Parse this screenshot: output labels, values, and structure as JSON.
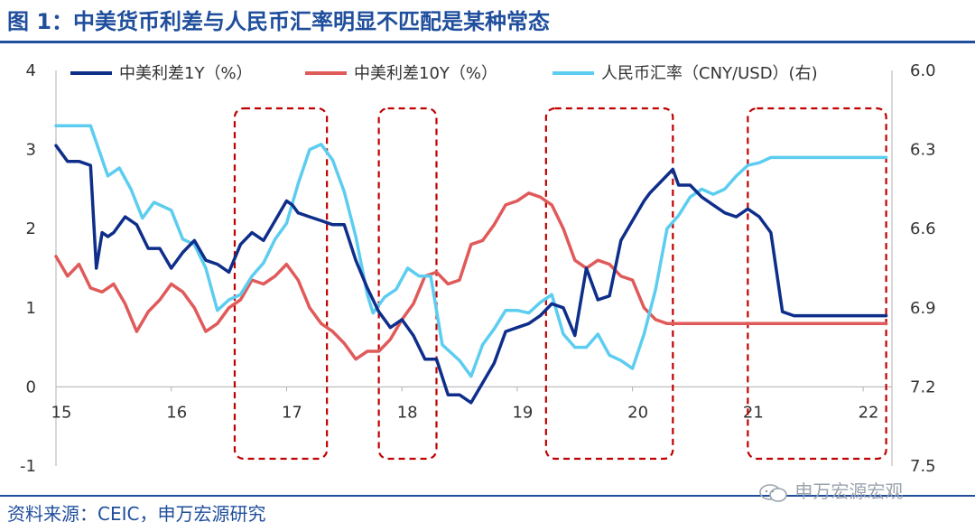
{
  "header": {
    "title": "图 1：中美货币利差与人民币汇率明显不匹配是某种常态"
  },
  "footer": {
    "source": "资料来源：CEIC，申万宏源研究",
    "watermark": "申万宏源宏观"
  },
  "chart_data": {
    "type": "line",
    "title": "图 1：中美货币利差与人民币汇率明显不匹配是某种常态",
    "x_ticks": [
      "15",
      "16",
      "17",
      "18",
      "19",
      "20",
      "21",
      "22"
    ],
    "y_left": {
      "ylim": [
        -1,
        4
      ],
      "ticks": [
        "4",
        "3",
        "2",
        "1",
        "0",
        "-1"
      ]
    },
    "y_right": {
      "ylim": [
        6.0,
        7.5
      ],
      "inverted": true,
      "ticks": [
        "6.0",
        "6.3",
        "6.6",
        "6.9",
        "7.2",
        "7.5"
      ]
    },
    "legend_position": "top",
    "colors": {
      "series1": "#0e2e8a",
      "series2": "#e05a5a",
      "series3": "#5ccdf0",
      "highlight": "#c00000"
    },
    "series": [
      {
        "name": "中美利差1Y（%）",
        "axis": "left",
        "x": [
          2015.0,
          2015.1,
          2015.2,
          2015.3,
          2015.35,
          2015.4,
          2015.45,
          2015.5,
          2015.6,
          2015.7,
          2015.8,
          2015.9,
          2016.0,
          2016.1,
          2016.2,
          2016.3,
          2016.4,
          2016.5,
          2016.6,
          2016.7,
          2016.8,
          2016.9,
          2017.0,
          2017.05,
          2017.1,
          2017.2,
          2017.3,
          2017.4,
          2017.5,
          2017.6,
          2017.7,
          2017.8,
          2017.9,
          2018.0,
          2018.1,
          2018.2,
          2018.3,
          2018.4,
          2018.5,
          2018.6,
          2018.7,
          2018.8,
          2018.9,
          2019.0,
          2019.1,
          2019.2,
          2019.3,
          2019.4,
          2019.5,
          2019.6,
          2019.7,
          2019.8,
          2019.9,
          2020.0,
          2020.1,
          2020.15,
          2020.25,
          2020.35,
          2020.4,
          2020.5,
          2020.6,
          2020.7,
          2020.8,
          2020.9,
          2021.0,
          2021.1,
          2021.2,
          2021.3,
          2021.4,
          2021.5,
          2021.6,
          2021.7,
          2021.8,
          2021.9,
          2022.0,
          2022.1,
          2022.2
        ],
        "values": [
          3.05,
          2.85,
          2.85,
          2.8,
          1.5,
          1.95,
          1.9,
          1.95,
          2.15,
          2.05,
          1.75,
          1.75,
          1.5,
          1.7,
          1.85,
          1.6,
          1.55,
          1.45,
          1.8,
          1.95,
          1.85,
          2.1,
          2.35,
          2.3,
          2.2,
          2.15,
          2.1,
          2.05,
          2.05,
          1.6,
          1.25,
          0.95,
          0.75,
          0.85,
          0.65,
          0.35,
          0.35,
          -0.1,
          -0.1,
          -0.2,
          0.05,
          0.3,
          0.7,
          0.75,
          0.8,
          0.9,
          1.05,
          1.0,
          0.65,
          1.5,
          1.1,
          1.15,
          1.85,
          2.1,
          2.35,
          2.45,
          2.6,
          2.75,
          2.55,
          2.55,
          2.4,
          2.3,
          2.2,
          2.15,
          2.25,
          2.15,
          1.95,
          0.95,
          0.9,
          0.9,
          0.9,
          0.9,
          0.9,
          0.9,
          0.9,
          0.9,
          0.9
        ]
      },
      {
        "name": "中美利差10Y（%）",
        "axis": "left",
        "x": [
          2015.0,
          2015.1,
          2015.2,
          2015.3,
          2015.4,
          2015.5,
          2015.6,
          2015.7,
          2015.8,
          2015.9,
          2016.0,
          2016.1,
          2016.2,
          2016.3,
          2016.4,
          2016.5,
          2016.6,
          2016.7,
          2016.8,
          2016.9,
          2017.0,
          2017.1,
          2017.2,
          2017.3,
          2017.4,
          2017.5,
          2017.6,
          2017.7,
          2017.8,
          2017.9,
          2018.0,
          2018.1,
          2018.2,
          2018.3,
          2018.4,
          2018.5,
          2018.6,
          2018.7,
          2018.8,
          2018.9,
          2019.0,
          2019.1,
          2019.2,
          2019.3,
          2019.4,
          2019.5,
          2019.6,
          2019.7,
          2019.8,
          2019.9,
          2020.0,
          2020.1,
          2020.2,
          2020.3,
          2020.4,
          2020.5,
          2020.6,
          2020.7,
          2020.8,
          2020.9,
          2021.0,
          2021.1,
          2021.2,
          2021.3,
          2021.4,
          2021.5,
          2021.6,
          2021.7,
          2021.8,
          2021.9,
          2022.0,
          2022.1,
          2022.2
        ],
        "values": [
          1.65,
          1.4,
          1.55,
          1.25,
          1.2,
          1.3,
          1.05,
          0.7,
          0.95,
          1.1,
          1.3,
          1.2,
          1.0,
          0.7,
          0.8,
          1.0,
          1.1,
          1.35,
          1.3,
          1.4,
          1.55,
          1.35,
          1.0,
          0.8,
          0.7,
          0.55,
          0.35,
          0.45,
          0.45,
          0.6,
          0.85,
          1.05,
          1.4,
          1.45,
          1.3,
          1.35,
          1.8,
          1.85,
          2.05,
          2.3,
          2.35,
          2.45,
          2.4,
          2.3,
          2.0,
          1.6,
          1.5,
          1.6,
          1.55,
          1.4,
          1.35,
          1.0,
          0.85,
          0.8,
          0.8,
          0.8,
          0.8,
          0.8,
          0.8,
          0.8,
          0.8,
          0.8,
          0.8,
          0.8,
          0.8,
          0.8,
          0.8,
          0.8,
          0.8,
          0.8,
          0.8,
          0.8,
          0.8
        ]
      },
      {
        "name": "人民币汇率（CNY/USD）(右)",
        "axis": "right",
        "x": [
          2015.0,
          2015.1,
          2015.2,
          2015.3,
          2015.45,
          2015.55,
          2015.65,
          2015.75,
          2015.85,
          2016.0,
          2016.1,
          2016.2,
          2016.3,
          2016.4,
          2016.5,
          2016.6,
          2016.7,
          2016.8,
          2016.9,
          2017.0,
          2017.1,
          2017.2,
          2017.3,
          2017.4,
          2017.5,
          2017.6,
          2017.7,
          2017.75,
          2017.85,
          2017.95,
          2018.05,
          2018.15,
          2018.25,
          2018.35,
          2018.5,
          2018.6,
          2018.7,
          2018.8,
          2018.9,
          2019.0,
          2019.1,
          2019.2,
          2019.3,
          2019.4,
          2019.5,
          2019.6,
          2019.7,
          2019.8,
          2019.9,
          2020.0,
          2020.1,
          2020.2,
          2020.3,
          2020.4,
          2020.5,
          2020.6,
          2020.7,
          2020.8,
          2020.9,
          2021.0,
          2021.1,
          2021.2,
          2021.3,
          2021.4,
          2021.5,
          2021.6,
          2021.7,
          2021.8,
          2021.9,
          2022.0,
          2022.1,
          2022.2
        ],
        "values": [
          6.21,
          6.21,
          6.21,
          6.21,
          6.4,
          6.37,
          6.45,
          6.56,
          6.5,
          6.53,
          6.64,
          6.66,
          6.75,
          6.91,
          6.87,
          6.85,
          6.78,
          6.73,
          6.64,
          6.58,
          6.43,
          6.3,
          6.28,
          6.34,
          6.46,
          6.63,
          6.85,
          6.92,
          6.86,
          6.83,
          6.75,
          6.78,
          6.78,
          7.04,
          7.1,
          7.16,
          7.04,
          6.98,
          6.91,
          6.91,
          6.92,
          6.88,
          6.85,
          7.0,
          7.05,
          7.05,
          7.0,
          7.08,
          7.1,
          7.13,
          7.0,
          6.83,
          6.6,
          6.55,
          6.48,
          6.45,
          6.47,
          6.45,
          6.4,
          6.36,
          6.35,
          6.33,
          6.33,
          6.33,
          6.33,
          6.33,
          6.33,
          6.33,
          6.33,
          6.33,
          6.33,
          6.33
        ]
      }
    ],
    "annotations": [
      {
        "type": "dashed-box",
        "x_range": [
          2016.55,
          2017.35
        ]
      },
      {
        "type": "dashed-box",
        "x_range": [
          2017.8,
          2018.3
        ]
      },
      {
        "type": "dashed-box",
        "x_range": [
          2019.25,
          2020.35
        ]
      },
      {
        "type": "dashed-box",
        "x_range": [
          2021.0,
          2022.2
        ]
      }
    ]
  }
}
